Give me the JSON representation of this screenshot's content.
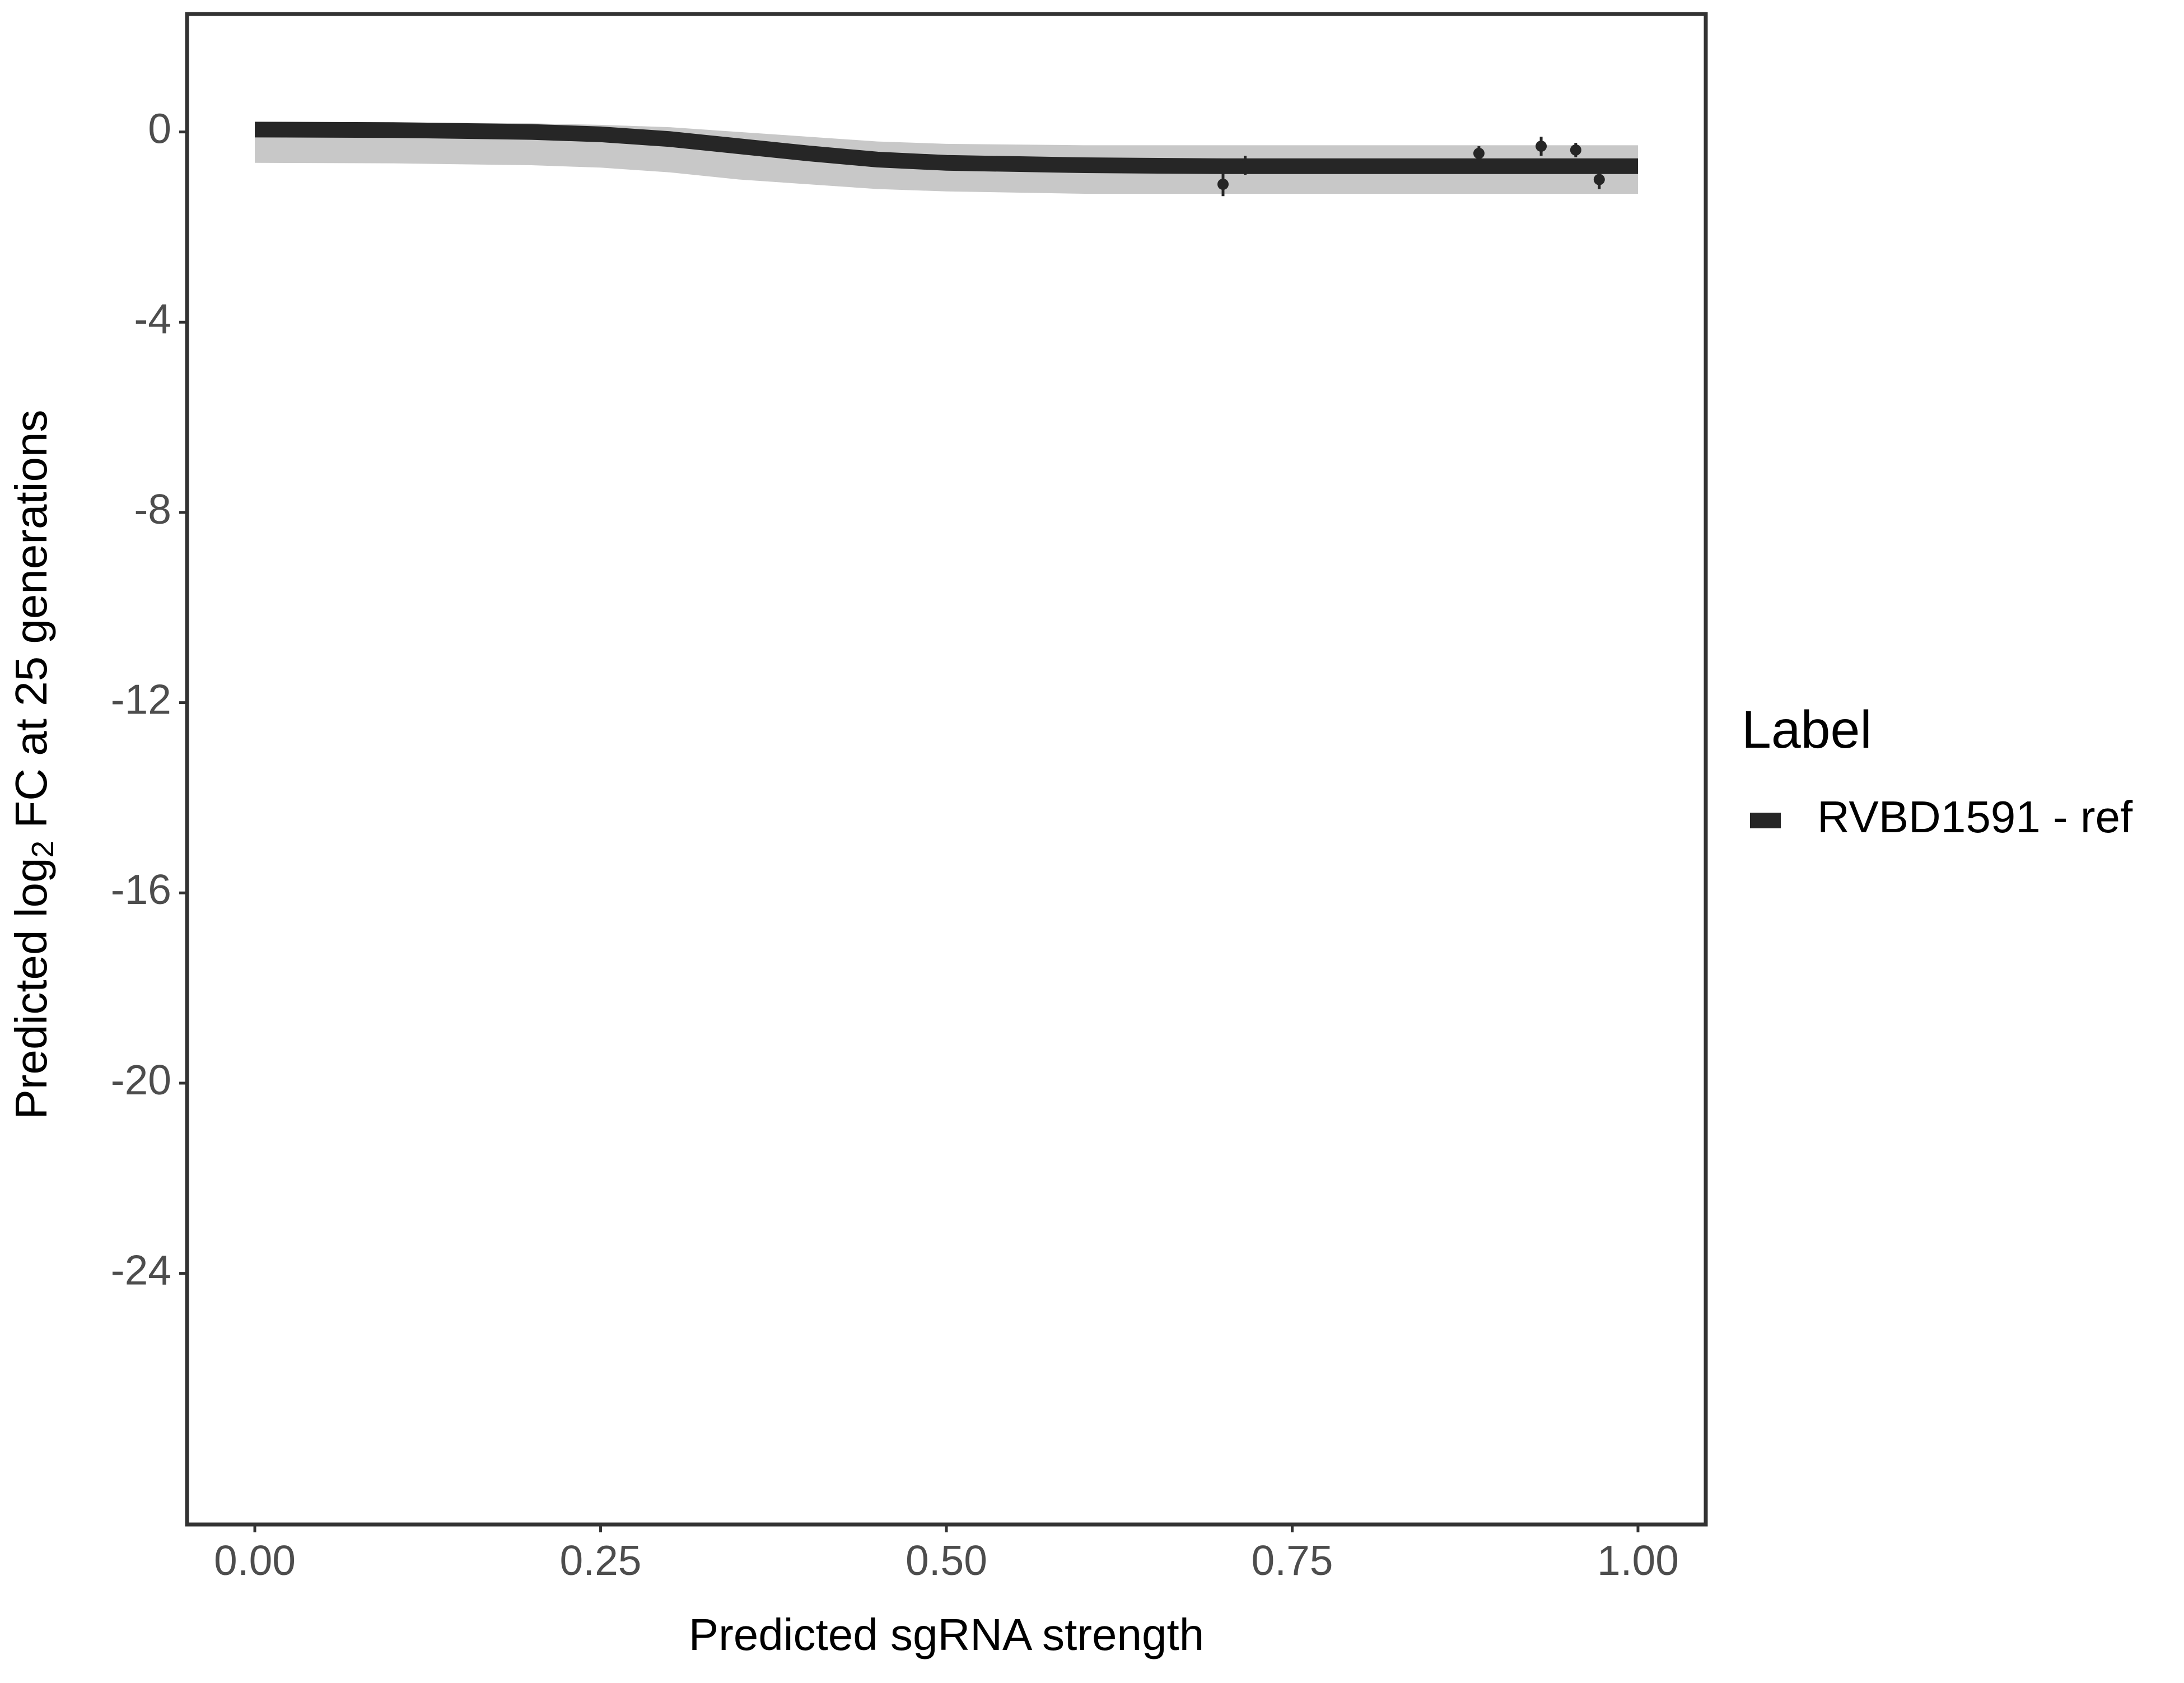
{
  "chart_data": {
    "type": "line",
    "x_label": "Predicted sgRNA strength",
    "y_label": {
      "before": "Predicted  log",
      "subscript": "2",
      "after": " FC at 25 generations"
    },
    "xlim": [
      -0.049,
      1.049
    ],
    "ylim": [
      -29.28,
      2.48
    ],
    "xticks": [
      {
        "value": 0,
        "label": "0.00"
      },
      {
        "value": 0.25,
        "label": "0.25"
      },
      {
        "value": 0.5,
        "label": "0.50"
      },
      {
        "value": 0.75,
        "label": "0.75"
      },
      {
        "value": 1,
        "label": "1.00"
      }
    ],
    "yticks": [
      0,
      -4,
      -8,
      -12,
      -16,
      -20,
      -24
    ],
    "grid": false,
    "legend": {
      "title": "Label",
      "position": "right"
    },
    "series": [
      {
        "name": "RVBD1591 - ref",
        "color": "#262626",
        "x": [
          0,
          0.1,
          0.2,
          0.25,
          0.3,
          0.35,
          0.4,
          0.45,
          0.5,
          0.6,
          0.7,
          0.8,
          0.9,
          1.0
        ],
        "values": [
          0.05,
          0.04,
          0.0,
          -0.05,
          -0.15,
          -0.3,
          -0.45,
          -0.58,
          -0.65,
          -0.7,
          -0.72,
          -0.72,
          -0.72,
          -0.72
        ],
        "band_lower": [
          -0.65,
          -0.66,
          -0.7,
          -0.75,
          -0.85,
          -1.0,
          -1.1,
          -1.2,
          -1.25,
          -1.3,
          -1.3,
          -1.3,
          -1.3,
          -1.3
        ],
        "band_upper": [
          0.2,
          0.2,
          0.18,
          0.15,
          0.1,
          0.0,
          -0.1,
          -0.2,
          -0.25,
          -0.28,
          -0.28,
          -0.28,
          -0.28,
          -0.28
        ],
        "points": {
          "x": [
            0.7,
            0.716,
            0.885,
            0.93,
            0.955,
            0.972
          ],
          "y": [
            -1.1,
            -0.7,
            -0.45,
            -0.3,
            -0.38,
            -1.0
          ],
          "err": [
            0.25,
            0.2,
            0.15,
            0.2,
            0.15,
            0.2
          ]
        }
      }
    ]
  }
}
